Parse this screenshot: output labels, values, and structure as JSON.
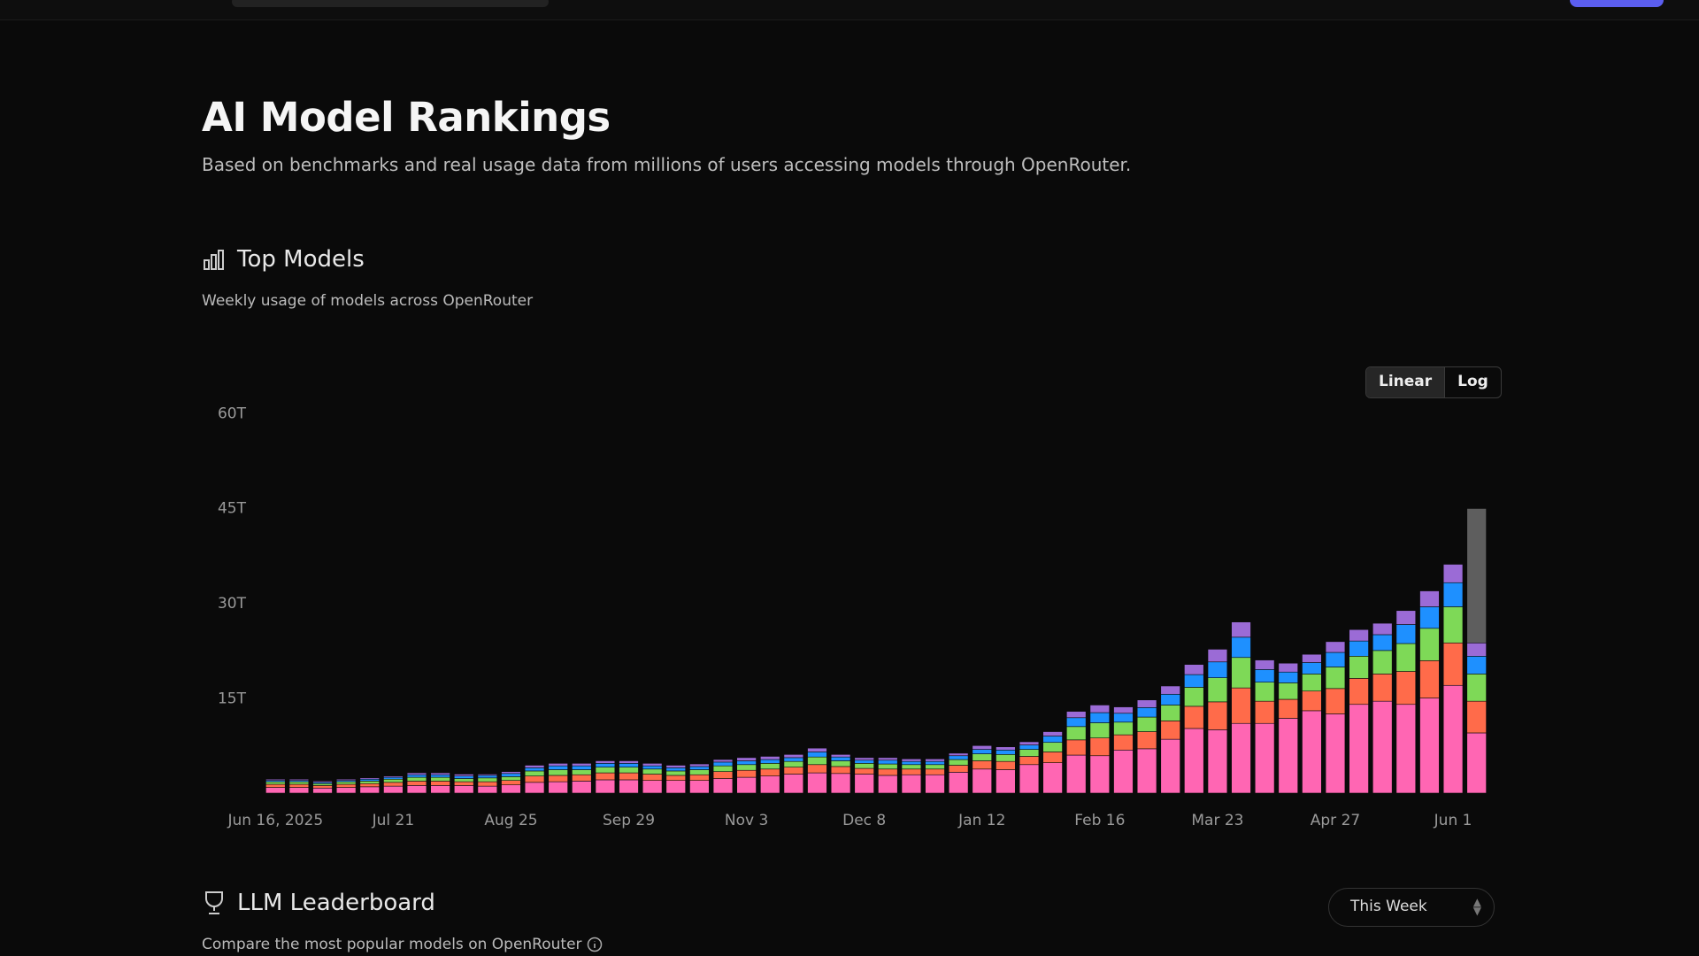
{
  "header": {
    "title": "AI Model Rankings",
    "subtitle": "Based on benchmarks and real usage data from millions of users accessing models through OpenRouter."
  },
  "top_models": {
    "title": "Top Models",
    "subtitle": "Weekly usage of models across OpenRouter",
    "scale_options": [
      "Linear",
      "Log"
    ]
  },
  "leaderboard": {
    "title": "LLM Leaderboard",
    "subtitle": "Compare the most popular models on OpenRouter",
    "period": "This Week"
  },
  "chart_data": {
    "type": "stacked_bar",
    "log_scale": false,
    "categories": [
      "Jun 16, 2025",
      null,
      null,
      null,
      null,
      "Jul 21",
      null,
      null,
      null,
      null,
      "Aug 25",
      null,
      null,
      null,
      null,
      "Sep 29",
      null,
      null,
      null,
      null,
      "Nov 3",
      null,
      null,
      null,
      null,
      "Dec 8",
      null,
      null,
      null,
      null,
      "Jan 12",
      null,
      null,
      null,
      null,
      "Feb 16",
      null,
      null,
      null,
      null,
      "Mar 23",
      null,
      null,
      null,
      null,
      "Apr 27",
      null,
      null,
      null,
      null,
      "Jun 1",
      null
    ],
    "ylim": [
      0,
      62
    ],
    "yticks": [
      {
        "value": 15,
        "label": "15T"
      },
      {
        "value": 30,
        "label": "30T"
      },
      {
        "value": 45,
        "label": "45T"
      },
      {
        "value": 60,
        "label": "60T"
      }
    ],
    "series": [
      {
        "color": "#ff66b3",
        "values": [
          0.9,
          0.9,
          0.8,
          0.9,
          1.0,
          1.1,
          1.2,
          1.2,
          1.2,
          1.1,
          1.3,
          1.7,
          1.8,
          1.9,
          2.1,
          2.1,
          2.0,
          2.0,
          2.0,
          2.3,
          2.5,
          2.7,
          3.0,
          3.2,
          3.1,
          3.0,
          2.8,
          2.9,
          2.9,
          3.3,
          3.8,
          3.7,
          4.5,
          4.8,
          6.0,
          5.9,
          6.8,
          7.0,
          8.5,
          10.2,
          10.0,
          11.0,
          11.0,
          11.8,
          13.0,
          12.5,
          14.0,
          14.5,
          14.0,
          15.0,
          17.0,
          9.5
        ]
      },
      {
        "color": "#ff6b4a",
        "values": [
          0.5,
          0.5,
          0.4,
          0.5,
          0.5,
          0.6,
          0.7,
          0.7,
          0.6,
          0.7,
          0.7,
          1.0,
          1.0,
          1.0,
          1.1,
          1.1,
          1.0,
          0.8,
          0.9,
          1.1,
          1.1,
          1.1,
          1.1,
          1.3,
          1.1,
          0.9,
          1.0,
          0.9,
          0.9,
          1.1,
          1.3,
          1.3,
          1.3,
          1.7,
          2.4,
          2.8,
          2.4,
          2.7,
          2.9,
          3.5,
          4.4,
          5.6,
          3.5,
          3.0,
          3.1,
          4.0,
          4.1,
          4.3,
          5.2,
          5.9,
          6.7,
          5.0
        ]
      },
      {
        "color": "#7ed957",
        "values": [
          0.4,
          0.4,
          0.3,
          0.4,
          0.4,
          0.5,
          0.6,
          0.6,
          0.5,
          0.6,
          0.6,
          0.8,
          0.9,
          0.8,
          0.9,
          0.9,
          0.8,
          0.7,
          0.8,
          0.9,
          0.9,
          0.9,
          0.9,
          1.2,
          0.9,
          0.8,
          0.8,
          0.7,
          0.7,
          0.9,
          1.1,
          1.1,
          1.1,
          1.5,
          2.1,
          2.4,
          2.0,
          2.3,
          2.5,
          3.0,
          3.8,
          4.8,
          3.0,
          2.6,
          2.7,
          3.4,
          3.5,
          3.7,
          4.4,
          5.1,
          5.7,
          4.3
        ]
      },
      {
        "color": "#1e90ff",
        "values": [
          0.2,
          0.2,
          0.2,
          0.2,
          0.3,
          0.3,
          0.4,
          0.4,
          0.4,
          0.4,
          0.5,
          0.5,
          0.6,
          0.6,
          0.6,
          0.6,
          0.5,
          0.5,
          0.5,
          0.6,
          0.6,
          0.6,
          0.6,
          0.8,
          0.6,
          0.5,
          0.6,
          0.5,
          0.5,
          0.6,
          0.7,
          0.7,
          0.7,
          1.0,
          1.4,
          1.6,
          1.4,
          1.5,
          1.7,
          2.0,
          2.5,
          3.2,
          2.0,
          1.7,
          1.8,
          2.3,
          2.4,
          2.5,
          3.0,
          3.4,
          3.8,
          2.8
        ]
      },
      {
        "color": "#9b6bd6",
        "values": [
          0.2,
          0.2,
          0.2,
          0.2,
          0.2,
          0.2,
          0.3,
          0.3,
          0.3,
          0.2,
          0.3,
          0.4,
          0.4,
          0.4,
          0.4,
          0.4,
          0.4,
          0.4,
          0.4,
          0.4,
          0.5,
          0.5,
          0.5,
          0.6,
          0.4,
          0.4,
          0.4,
          0.4,
          0.4,
          0.4,
          0.6,
          0.5,
          0.5,
          0.7,
          1.0,
          1.2,
          1.0,
          1.2,
          1.3,
          1.6,
          2.0,
          2.4,
          1.5,
          1.4,
          1.3,
          1.7,
          1.8,
          1.8,
          2.2,
          2.5,
          2.9,
          2.1
        ]
      },
      {
        "color": "#5e5e5e",
        "values": [
          null,
          null,
          null,
          null,
          null,
          null,
          null,
          null,
          null,
          null,
          null,
          null,
          null,
          null,
          null,
          null,
          null,
          null,
          null,
          null,
          null,
          null,
          null,
          null,
          null,
          null,
          null,
          null,
          null,
          null,
          null,
          null,
          null,
          null,
          null,
          null,
          null,
          null,
          null,
          null,
          null,
          null,
          null,
          null,
          null,
          null,
          null,
          null,
          null,
          null,
          null,
          21.2
        ]
      }
    ]
  }
}
